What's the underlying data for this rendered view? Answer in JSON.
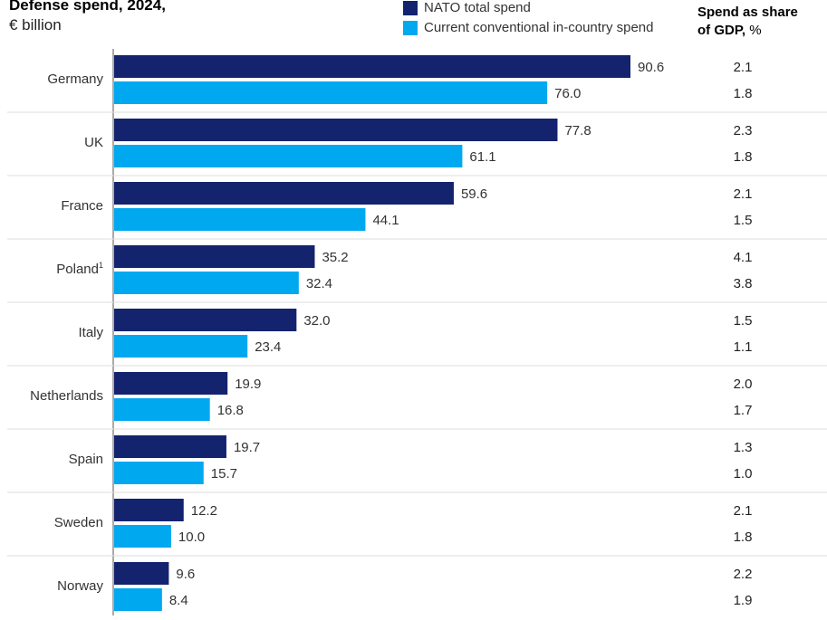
{
  "chart_data": {
    "type": "bar",
    "orientation": "horizontal",
    "title": "Defense spend, 2024,",
    "subtitle": "€ billion",
    "categories": [
      "Germany",
      "UK",
      "France",
      "Poland",
      "Italy",
      "Netherlands",
      "Spain",
      "Sweden",
      "Norway"
    ],
    "category_superscripts": [
      "",
      "",
      "",
      "1",
      "",
      "",
      "",
      "",
      ""
    ],
    "series": [
      {
        "name": "NATO total spend",
        "color": "#14236e",
        "values": [
          90.6,
          77.8,
          59.6,
          35.2,
          32.0,
          19.9,
          19.7,
          12.2,
          9.6
        ],
        "labels": [
          "90.6",
          "77.8",
          "59.6",
          "35.2",
          "32.0",
          "19.9",
          "19.7",
          "12.2",
          "9.6"
        ]
      },
      {
        "name": "Current conventional in-country spend",
        "color": "#00a8f0",
        "values": [
          76.0,
          61.1,
          44.1,
          32.4,
          23.4,
          16.8,
          15.7,
          10.0,
          8.4
        ],
        "labels": [
          "76.0",
          "61.1",
          "44.1",
          "32.4",
          "23.4",
          "16.8",
          "15.7",
          "10.0",
          "8.4"
        ]
      }
    ],
    "gdp_share": {
      "header_bold": "Spend as share of GDP,",
      "header_line1": "Spend as share",
      "header_line2": "of GDP,",
      "header_unit": "%",
      "nato": [
        "2.1",
        "2.3",
        "2.1",
        "4.1",
        "1.5",
        "2.0",
        "1.3",
        "2.1",
        "2.2"
      ],
      "in_country": [
        "1.8",
        "1.8",
        "1.5",
        "3.8",
        "1.1",
        "1.7",
        "1.0",
        "1.8",
        "1.9"
      ]
    },
    "xlim": [
      0,
      100
    ],
    "grid": false,
    "legend_position": "top"
  }
}
